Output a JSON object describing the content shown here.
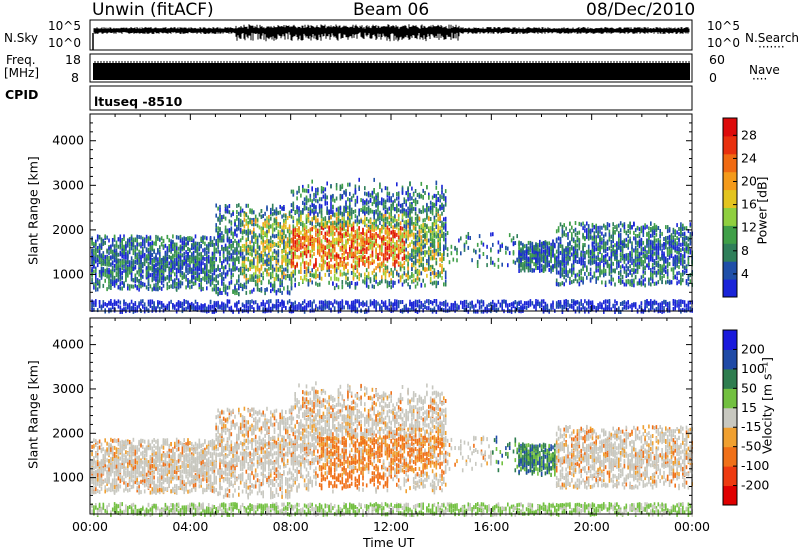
{
  "header": {
    "site": "Unwin (fitACF)",
    "beam": "Beam 06",
    "date": "08/Dec/2010"
  },
  "side_labels": {
    "nsky": "N.Sky",
    "freq": "Freq.",
    "freq_unit": "[MHz]",
    "cpid": "CPID",
    "nsearch": "N.Search",
    "nave": "Nave",
    "nsearch_dots": "·······",
    "nave_dots": "····"
  },
  "noise_panel": {
    "left_ticks": [
      "10^5",
      "10^0"
    ],
    "right_ticks": [
      "10^5",
      "10^0"
    ]
  },
  "freq_panel": {
    "left_ticks": [
      "18",
      "8"
    ],
    "right_ticks": [
      "60",
      "0"
    ]
  },
  "cpid_panel": {
    "text": "ltuseq -8510"
  },
  "colors": {
    "power": [
      "#1a24d8",
      "#1f4fa8",
      "#2f7f5a",
      "#3f9f48",
      "#8fcf3f",
      "#e3c41f",
      "#f49a1a",
      "#f06a12",
      "#e8300e",
      "#dd0b0b"
    ],
    "velocity": [
      "#1a1adc",
      "#1f4aa6",
      "#2e7d4f",
      "#72c040",
      "#c8c8c0",
      "#f0a030",
      "#f07018",
      "#ee3a10",
      "#e00000"
    ]
  },
  "chart_data": [
    {
      "type": "heatmap",
      "name": "power",
      "ylabel": "Slant Range [km]",
      "xlabel": "Time UT",
      "x_ticks": [
        "00:00",
        "04:00",
        "08:00",
        "12:00",
        "16:00",
        "20:00",
        "00:00"
      ],
      "y_ticks": [
        "1000",
        "2000",
        "3000",
        "4000"
      ],
      "xlim_hours": [
        0,
        24
      ],
      "ylim_km": [
        180,
        4600
      ],
      "colorbar": {
        "label": "Power [dB]",
        "ticks": [
          "4",
          "8",
          "12",
          "16",
          "20",
          "24",
          "28"
        ],
        "range": [
          0,
          31
        ]
      }
    },
    {
      "type": "heatmap",
      "name": "velocity",
      "ylabel": "Slant Range [km]",
      "xlabel": "Time UT",
      "x_ticks": [
        "00:00",
        "04:00",
        "08:00",
        "12:00",
        "16:00",
        "20:00",
        "00:00"
      ],
      "y_ticks": [
        "1000",
        "2000",
        "3000",
        "4000"
      ],
      "xlim_hours": [
        0,
        24
      ],
      "ylim_km": [
        180,
        4600
      ],
      "colorbar": {
        "label": "Velocity [m s⁻¹]",
        "ticks": [
          "200",
          "100",
          "50",
          "15",
          "-15",
          "-50",
          "-100",
          "-200"
        ]
      }
    }
  ]
}
